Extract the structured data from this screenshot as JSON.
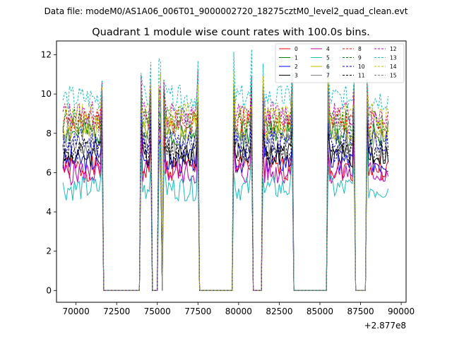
{
  "chart_data": {
    "type": "line",
    "suptitle": "Data file: modeM0/AS1A06_006T01_9000002720_18275cztM0_level2_quad_clean.evt",
    "title": "Quadrant 1 module wise count rates with 100.0s bins.",
    "xlabel": "",
    "ylabel": "",
    "x_offset_label": "+2.877e8",
    "xlim": [
      68800,
      90300
    ],
    "ylim": [
      -0.6,
      12.7
    ],
    "x_ticks": [
      70000,
      72500,
      75000,
      77500,
      80000,
      82500,
      85000,
      87500,
      90000
    ],
    "x_tick_labels": [
      "70000",
      "72500",
      "75000",
      "77500",
      "80000",
      "82500",
      "85000",
      "87500",
      "90000"
    ],
    "y_ticks": [
      0,
      2,
      4,
      6,
      8,
      10,
      12
    ],
    "y_tick_labels": [
      "0",
      "2",
      "4",
      "6",
      "8",
      "10",
      "12"
    ],
    "legend_position": "upper right",
    "legend_columns": 4,
    "bin_size_s": 100,
    "x_start": 69200,
    "x_end": 89200,
    "gaps": [
      [
        71700,
        73900
      ],
      [
        74700,
        75000
      ],
      [
        75300,
        75300
      ],
      [
        77600,
        79600
      ],
      [
        80900,
        81400
      ],
      [
        83400,
        85400
      ],
      [
        87200,
        87800
      ]
    ],
    "series": [
      {
        "name": "0",
        "color": "#ff0000",
        "dash": false,
        "level": 6.2
      },
      {
        "name": "1",
        "color": "#008000",
        "dash": false,
        "level": 8.0
      },
      {
        "name": "2",
        "color": "#0000ff",
        "dash": false,
        "level": 6.6
      },
      {
        "name": "3",
        "color": "#000000",
        "dash": false,
        "level": 6.9
      },
      {
        "name": "4",
        "color": "#bf00bf",
        "dash": false,
        "level": 6.0
      },
      {
        "name": "5",
        "color": "#17bfbf",
        "dash": false,
        "level": 5.2
      },
      {
        "name": "6",
        "color": "#bfbf00",
        "dash": false,
        "level": 8.3
      },
      {
        "name": "7",
        "color": "#7f7f7f",
        "dash": false,
        "level": 7.4
      },
      {
        "name": "8",
        "color": "#ff0000",
        "dash": true,
        "level": 8.6
      },
      {
        "name": "9",
        "color": "#008000",
        "dash": true,
        "level": 8.7
      },
      {
        "name": "10",
        "color": "#0000ff",
        "dash": true,
        "level": 7.6
      },
      {
        "name": "11",
        "color": "#000000",
        "dash": true,
        "level": 7.1
      },
      {
        "name": "12",
        "color": "#bf00bf",
        "dash": true,
        "level": 9.0
      },
      {
        "name": "13",
        "color": "#17bfbf",
        "dash": true,
        "level": 9.8
      },
      {
        "name": "14",
        "color": "#bfbf00",
        "dash": true,
        "level": 8.9
      },
      {
        "name": "15",
        "color": "#7f7f7f",
        "dash": true,
        "level": 8.2
      }
    ]
  }
}
